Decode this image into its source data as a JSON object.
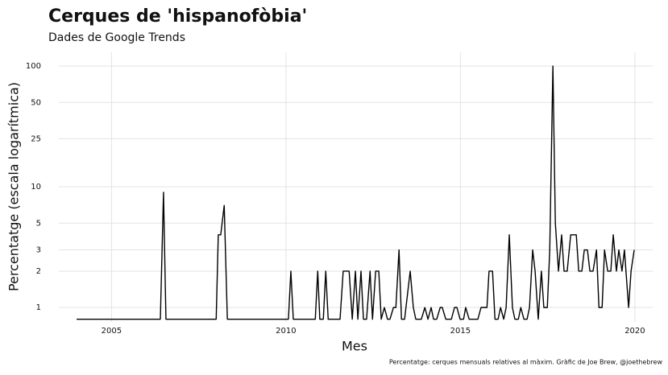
{
  "chart_data": {
    "type": "line",
    "title": "Cerques de 'hispanofòbia'",
    "subtitle": "Dades de Google Trends",
    "x_label": "Mes",
    "y_label": "Percentatge (escala logarítmica)",
    "caption": "Percentatge: cerques mensuals relatives al màxim. Gràfic de Joe Brew, @joethebrew",
    "color": "#000000",
    "log_y": true,
    "grid": true,
    "xlim": [
      2003.49,
      2020.51
    ],
    "xticks": [
      2005,
      2010,
      2015,
      2020
    ],
    "ylim": [
      0.76,
      130
    ],
    "yticks": [
      1,
      2,
      3,
      5,
      10,
      25,
      50,
      100
    ],
    "x": [
      2004.0,
      2006.4,
      2006.49,
      2006.56,
      2008.0,
      2008.06,
      2008.13,
      2008.23,
      2008.32,
      2010.07,
      2010.14,
      2010.21,
      2010.84,
      2010.91,
      2010.97,
      2011.07,
      2011.14,
      2011.21,
      2011.55,
      2011.64,
      2011.81,
      2011.9,
      2011.99,
      2012.06,
      2012.15,
      2012.22,
      2012.31,
      2012.41,
      2012.48,
      2012.57,
      2012.66,
      2012.73,
      2012.82,
      2012.91,
      2012.98,
      2013.08,
      2013.15,
      2013.24,
      2013.31,
      2013.4,
      2013.56,
      2013.65,
      2013.72,
      2013.88,
      2013.98,
      2014.07,
      2014.16,
      2014.23,
      2014.32,
      2014.42,
      2014.48,
      2014.58,
      2014.74,
      2014.83,
      2014.9,
      2014.99,
      2015.09,
      2015.15,
      2015.25,
      2015.5,
      2015.59,
      2015.76,
      2015.82,
      2015.92,
      2015.99,
      2016.08,
      2016.15,
      2016.24,
      2016.31,
      2016.4,
      2016.49,
      2016.56,
      2016.66,
      2016.73,
      2016.82,
      2016.91,
      2016.98,
      2017.07,
      2017.14,
      2017.23,
      2017.32,
      2017.39,
      2017.49,
      2017.56,
      2017.65,
      2017.72,
      2017.81,
      2017.9,
      2017.97,
      2018.06,
      2018.16,
      2018.23,
      2018.32,
      2018.39,
      2018.48,
      2018.55,
      2018.64,
      2018.71,
      2018.8,
      2018.9,
      2018.97,
      2019.06,
      2019.13,
      2019.22,
      2019.31,
      2019.38,
      2019.47,
      2019.54,
      2019.63,
      2019.7,
      2019.82,
      2019.89,
      2019.98
    ],
    "values": [
      0.8,
      0.8,
      9,
      0.8,
      0.8,
      4,
      4,
      7,
      0.8,
      0.8,
      2,
      0.8,
      0.8,
      2,
      0.8,
      0.8,
      2,
      0.8,
      0.8,
      2,
      2,
      0.8,
      2,
      0.8,
      2,
      0.8,
      0.8,
      2,
      0.8,
      2,
      2,
      0.8,
      1,
      0.8,
      0.8,
      1,
      1,
      3,
      0.8,
      0.8,
      2,
      1,
      0.8,
      0.8,
      1,
      0.8,
      1,
      0.8,
      0.8,
      1,
      1,
      0.8,
      0.8,
      1,
      1,
      0.8,
      0.8,
      1,
      0.8,
      0.8,
      1,
      1,
      2,
      2,
      0.8,
      0.8,
      1,
      0.8,
      1,
      4,
      1,
      0.8,
      0.8,
      1,
      0.8,
      0.8,
      1,
      3,
      2,
      0.8,
      2,
      1,
      1,
      3,
      100,
      5,
      2,
      4,
      2,
      2,
      4,
      4,
      4,
      2,
      2,
      3,
      3,
      2,
      2,
      3,
      1,
      1,
      3,
      2,
      2,
      4,
      2,
      3,
      2,
      3,
      1,
      2,
      3
    ]
  }
}
